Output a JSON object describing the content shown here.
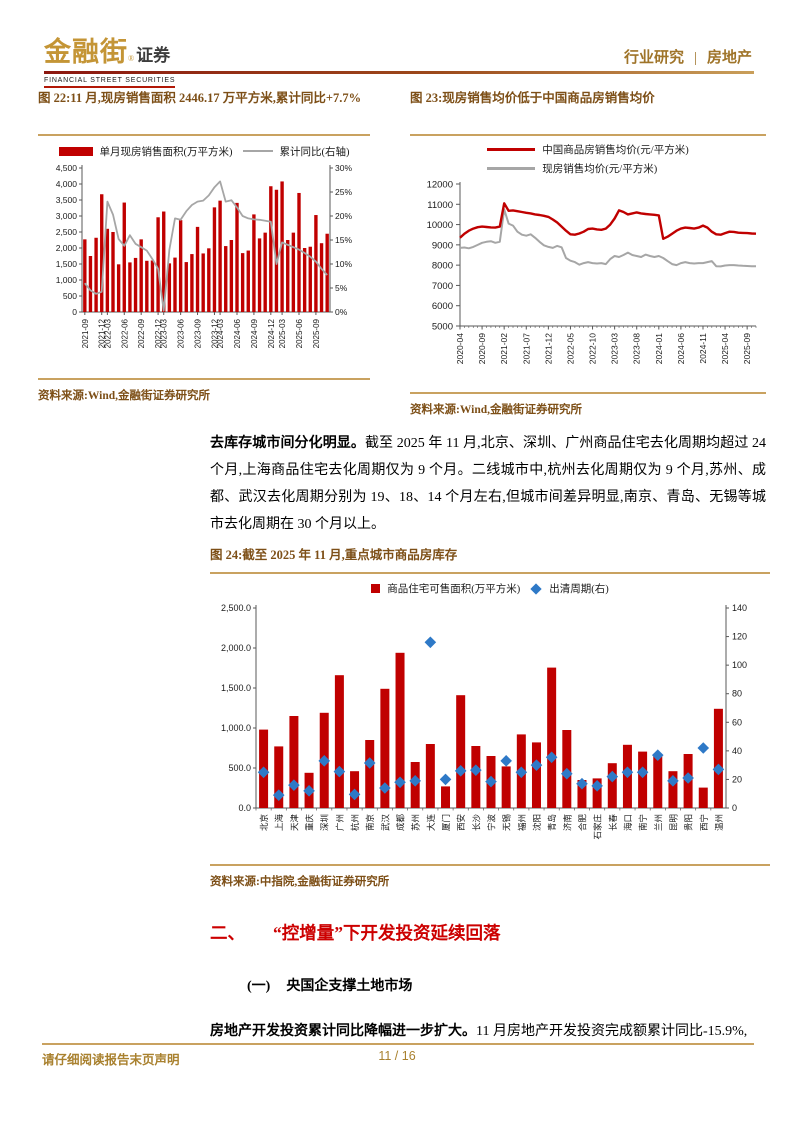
{
  "header": {
    "logo_cn": "金融街",
    "logo_reg": "®",
    "logo_suffix": "证券",
    "logo_en": "FINANCIAL STREET SECURITIES",
    "category": "行业研究",
    "separator": "|",
    "industry": "房地产"
  },
  "paragraph": {
    "lead": "去库存城市间分化明显。",
    "body": "截至 2025 年 11 月,北京、深圳、广州商品住宅去化周期均超过 24 个月,上海商品住宅去化周期仅为 9 个月。二线城市中,杭州去化周期仅为 9 个月,苏州、成都、武汉去化周期分别为 19、18、14 个月左右,但城市间差异明显,南京、青岛、无锡等城市去化周期在 30 个月以上。"
  },
  "section": {
    "number": "二、",
    "title": "“控增量”下开发投资延续回落"
  },
  "subsection": {
    "number": "(一)",
    "title": "央国企支撑土地市场"
  },
  "bodyline": {
    "lead": "房地产开发投资累计同比降幅进一步扩大。",
    "rest": "11 月房地产开发投资完成额累计同比-15.9%,"
  },
  "footer": {
    "disclaimer": "请仔细阅读报告末页声明",
    "page": "11 / 16"
  },
  "chart_data": [
    {
      "id": "fig22",
      "type": "bar",
      "title": "图 22:11 月,现房销售面积 2446.17 万平方米,累计同比+7.7%",
      "source": "资料来源:Wind,金融街证券研究所",
      "legend": [
        "单月现房销售面积(万平方米)",
        "累计同比(右轴)"
      ],
      "categories": [
        "2021-09",
        "2021-10",
        "2021-11",
        "2021-12",
        "2022-03",
        "2022-04",
        "2022-05",
        "2022-06",
        "2022-07",
        "2022-08",
        "2022-09",
        "2022-10",
        "2022-11",
        "2022-12",
        "2023-03",
        "2023-04",
        "2023-05",
        "2023-06",
        "2023-07",
        "2023-08",
        "2023-09",
        "2023-10",
        "2023-11",
        "2023-12",
        "2024-03",
        "2024-04",
        "2024-05",
        "2024-06",
        "2024-07",
        "2024-08",
        "2024-09",
        "2024-10",
        "2024-11",
        "2024-12",
        "2025-02",
        "2025-03",
        "2025-04",
        "2025-05",
        "2025-06",
        "2025-07",
        "2025-08",
        "2025-09",
        "2025-10",
        "2025-11"
      ],
      "series": [
        {
          "name": "单月现房销售面积(万平方米)",
          "type": "bar",
          "axis": "left",
          "color": "#C00000",
          "values": [
            2270,
            1750,
            2320,
            3680,
            2600,
            2500,
            1490,
            3420,
            1550,
            1690,
            2270,
            1600,
            1610,
            2960,
            3140,
            1520,
            1700,
            2870,
            1560,
            1810,
            2660,
            1830,
            1990,
            3270,
            3480,
            2060,
            2250,
            3410,
            1840,
            1920,
            3050,
            2300,
            2480,
            3930,
            3820,
            4080,
            2250,
            2480,
            3720,
            2000,
            2040,
            3030,
            2150,
            2446.17
          ]
        },
        {
          "name": "累计同比(右轴)",
          "type": "line",
          "axis": "right",
          "color": "#A6A6A6",
          "values": [
            6.0,
            4.5,
            3.8,
            4.2,
            23.0,
            20.3,
            15.2,
            13.8,
            16.0,
            14.2,
            13.5,
            12.8,
            11.0,
            9.0,
            0.3,
            13.0,
            19.5,
            19.2,
            21.0,
            22.3,
            23.0,
            23.2,
            24.3,
            26.0,
            27.2,
            23.0,
            23.3,
            21.8,
            20.0,
            19.5,
            19.3,
            19.2,
            19.0,
            18.8,
            10.0,
            14.5,
            14.0,
            13.5,
            13.0,
            12.3,
            11.5,
            10.5,
            9.0,
            7.7
          ]
        }
      ],
      "left_axis": {
        "min": 0,
        "max": 4500,
        "step": 500
      },
      "right_axis": {
        "min": 0,
        "max": 30,
        "step": 5,
        "suffix": "%"
      },
      "x_ticks": [
        "2021-09",
        "2021-12",
        "2022-03",
        "2022-06",
        "2022-09",
        "2022-12",
        "2023-03",
        "2023-06",
        "2023-09",
        "2023-12",
        "2024-03",
        "2024-06",
        "2024-09",
        "2024-12",
        "2025-03",
        "2025-06",
        "2025-09"
      ],
      "x_tick_indices": [
        0,
        3,
        4,
        7,
        10,
        13,
        14,
        17,
        20,
        23,
        24,
        27,
        30,
        33,
        35,
        38,
        41
      ]
    },
    {
      "id": "fig23",
      "type": "line",
      "title": "图 23:现房销售均价低于中国商品房销售均价",
      "source": "资料来源:Wind,金融街证券研究所",
      "legend": [
        "中国商品房销售均价(元/平方米)",
        "现房销售均价(元/平方米)"
      ],
      "series": [
        {
          "name": "中国商品房销售均价(元/平方米)",
          "color": "#C00000",
          "values": [
            9350,
            9550,
            9700,
            9800,
            9870,
            9900,
            9880,
            9860,
            9850,
            9900,
            11050,
            10680,
            10700,
            10660,
            10620,
            10580,
            10550,
            10500,
            10470,
            10430,
            10380,
            10250,
            10100,
            9900,
            9700,
            9520,
            9500,
            9560,
            9650,
            9780,
            9800,
            9760,
            9740,
            9800,
            10000,
            10300,
            10700,
            10620,
            10500,
            10550,
            10600,
            10550,
            10520,
            10500,
            10480,
            10450,
            9300,
            9400,
            9550,
            9700,
            9800,
            9850,
            9830,
            9800,
            9850,
            9950,
            9850,
            9650,
            9520,
            9500,
            9580,
            9650,
            9640,
            9600,
            9590,
            9580,
            9560,
            9550
          ]
        },
        {
          "name": "现房销售均价(元/平方米)",
          "color": "#A6A6A6",
          "values": [
            8850,
            8870,
            8830,
            8900,
            9000,
            9100,
            9150,
            9180,
            9100,
            9150,
            10750,
            10050,
            9950,
            9650,
            9500,
            9450,
            9520,
            9350,
            9150,
            8980,
            8900,
            8850,
            8950,
            8880,
            8350,
            8220,
            8150,
            8020,
            8100,
            8150,
            8100,
            8080,
            8100,
            8050,
            8300,
            8450,
            8400,
            8500,
            8620,
            8500,
            8450,
            8400,
            8520,
            8450,
            8400,
            8450,
            8350,
            8200,
            8050,
            8000,
            8100,
            8150,
            8100,
            8080,
            8100,
            8100,
            8150,
            8200,
            7950,
            7940,
            7980,
            8000,
            8000,
            7980,
            7970,
            7960,
            7950,
            7950
          ]
        }
      ],
      "y_axis": {
        "min": 5000,
        "max": 12000,
        "step": 1000
      },
      "x_ticks": [
        "2020-04",
        "2020-09",
        "2021-02",
        "2021-07",
        "2021-12",
        "2022-05",
        "2022-10",
        "2023-03",
        "2023-08",
        "2024-01",
        "2024-06",
        "2024-11",
        "2025-04",
        "2025-09"
      ],
      "x_tick_indices": [
        0,
        5,
        10,
        15,
        20,
        25,
        30,
        35,
        40,
        45,
        50,
        55,
        60,
        65
      ]
    },
    {
      "id": "fig24",
      "type": "bar",
      "title": "图 24:截至 2025 年 11 月,重点城市商品房库存",
      "source": "资料来源:中指院,金融街证券研究所",
      "legend": [
        "商品住宅可售面积(万平方米)",
        "出清周期(右)"
      ],
      "categories": [
        "北京",
        "上海",
        "天津",
        "重庆",
        "深圳",
        "广州",
        "杭州",
        "南京",
        "武汉",
        "成都",
        "苏州",
        "大连",
        "厦门",
        "西安",
        "长沙",
        "宁波",
        "无锡",
        "福州",
        "沈阳",
        "青岛",
        "济南",
        "合肥",
        "石家庄",
        "长春",
        "海口",
        "南宁",
        "兰州",
        "昆明",
        "贵阳",
        "西宁",
        "温州"
      ],
      "series": [
        {
          "name": "商品住宅可售面积(万平方米)",
          "type": "bar",
          "axis": "left",
          "color": "#C00000",
          "values": [
            980,
            770,
            1150,
            440,
            1190,
            1660,
            460,
            850,
            1490,
            1940,
            575,
            800,
            270,
            1410,
            775,
            650,
            520,
            920,
            820,
            1755,
            975,
            350,
            370,
            560,
            790,
            705,
            650,
            460,
            675,
            255,
            1240
          ]
        },
        {
          "name": "出清周期(右)",
          "type": "scatter",
          "axis": "right",
          "color": "#2E79C7",
          "values": [
            25,
            9,
            16,
            12,
            33,
            25.5,
            9.5,
            31.5,
            14,
            18,
            19,
            116,
            20,
            26,
            26.5,
            18.5,
            33,
            25,
            30,
            35.5,
            24,
            17,
            15.5,
            22,
            25,
            25,
            37,
            19,
            21,
            42,
            27
          ]
        }
      ],
      "left_axis": {
        "min": 0,
        "max": 2500,
        "step": 500
      },
      "right_axis": {
        "min": 0,
        "max": 140,
        "step": 20
      }
    }
  ]
}
